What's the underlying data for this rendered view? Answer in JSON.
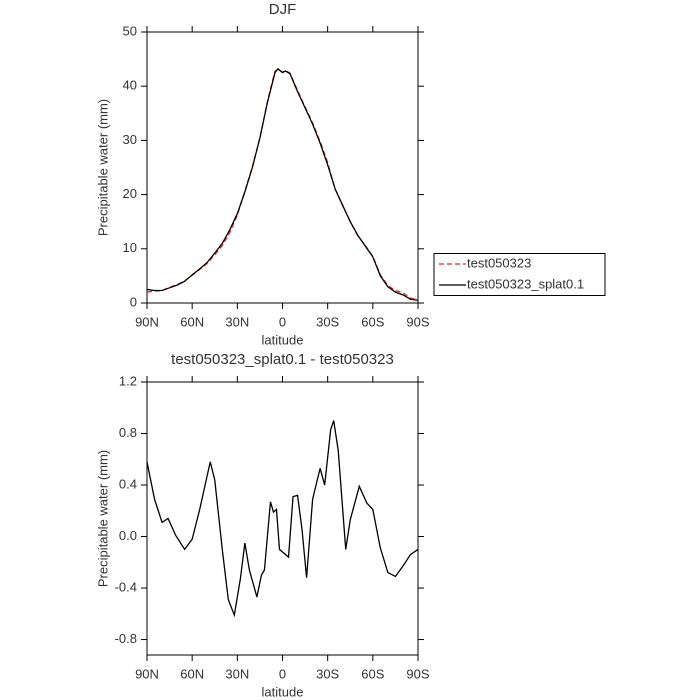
{
  "chart_data": [
    {
      "type": "line",
      "title": "DJF",
      "xlabel": "latitude",
      "ylabel": "Precipitable water (mm)",
      "x": [
        90,
        85,
        80,
        75,
        70,
        65,
        60,
        55,
        50,
        45,
        40,
        35,
        30,
        25,
        20,
        15,
        10,
        5,
        3,
        0,
        -2,
        -5,
        -10,
        -15,
        -20,
        -25,
        -30,
        -35,
        -40,
        -45,
        -50,
        -55,
        -60,
        -65,
        -70,
        -75,
        -80,
        -85,
        -90
      ],
      "series": [
        {
          "name": "test050323",
          "color": "#e8231e",
          "linestyle": "dashed",
          "values": [
            2.0,
            2.2,
            2.3,
            2.9,
            3.4,
            4.1,
            5.1,
            6.2,
            7.3,
            8.9,
            10.6,
            13.0,
            16.2,
            20.6,
            25.2,
            30.4,
            37.2,
            42.8,
            43.0,
            42.6,
            42.9,
            42.4,
            39.2,
            36.2,
            33.2,
            29.8,
            25.9,
            21.0,
            17.9,
            15.0,
            12.4,
            10.6,
            8.6,
            5.2,
            3.2,
            2.3,
            1.9,
            0.9,
            0.6
          ]
        },
        {
          "name": "test050323_splat0.1",
          "color": "#000000",
          "linestyle": "solid",
          "values": [
            2.5,
            2.3,
            2.3,
            2.8,
            3.3,
            4.0,
            5.2,
            6.3,
            7.5,
            9.2,
            11.0,
            13.5,
            16.5,
            20.5,
            25.0,
            30.5,
            37.0,
            42.5,
            43.2,
            42.5,
            42.8,
            42.3,
            39.0,
            36.0,
            33.0,
            29.5,
            25.5,
            21.0,
            18.0,
            15.0,
            12.5,
            10.5,
            8.5,
            5.0,
            3.0,
            2.0,
            1.5,
            0.7,
            0.5
          ]
        }
      ],
      "xlim": [
        90,
        -90
      ],
      "xticks": [
        {
          "value": 90,
          "label": "90N"
        },
        {
          "value": 60,
          "label": "60N"
        },
        {
          "value": 30,
          "label": "30N"
        },
        0,
        {
          "value": -30,
          "label": "30S"
        },
        {
          "value": -60,
          "label": "60S"
        },
        {
          "value": -90,
          "label": "90S"
        }
      ],
      "ylim": [
        0,
        50
      ],
      "yticks": [
        0,
        10,
        20,
        30,
        40,
        50
      ],
      "grid": false,
      "legend": "right"
    },
    {
      "type": "line",
      "title": "test050323_splat0.1 - test050323",
      "xlabel": "latitude",
      "ylabel": "Precipitable water (mm)",
      "x": [
        90,
        85,
        80,
        76,
        71,
        65,
        60,
        55,
        48,
        45,
        40,
        36,
        32,
        28,
        25,
        22,
        17,
        14,
        12,
        8,
        6,
        4,
        2,
        -4,
        -7,
        -10,
        -13,
        -16,
        -20,
        -25,
        -28,
        -32,
        -34,
        -37,
        -42,
        -45,
        -51,
        -56,
        -60,
        -65,
        -70,
        -75,
        -80,
        -85,
        -90
      ],
      "values": [
        0.58,
        0.29,
        0.11,
        0.14,
        0.01,
        -0.1,
        -0.02,
        0.21,
        0.58,
        0.44,
        -0.1,
        -0.49,
        -0.61,
        -0.33,
        -0.05,
        -0.26,
        -0.47,
        -0.3,
        -0.26,
        0.27,
        0.19,
        0.21,
        -0.1,
        -0.16,
        0.31,
        0.32,
        0.05,
        -0.32,
        0.29,
        0.53,
        0.4,
        0.83,
        0.9,
        0.67,
        -0.1,
        0.13,
        0.39,
        0.26,
        0.21,
        -0.09,
        -0.28,
        -0.31,
        -0.23,
        -0.14,
        -0.1
      ],
      "color": "#000000",
      "xlim": [
        90,
        -90
      ],
      "xticks": [
        {
          "value": 90,
          "label": "90N"
        },
        {
          "value": 60,
          "label": "60N"
        },
        {
          "value": 30,
          "label": "30N"
        },
        0,
        {
          "value": -30,
          "label": "30S"
        },
        {
          "value": -60,
          "label": "60S"
        },
        {
          "value": -90,
          "label": "90S"
        }
      ],
      "ylim": [
        -0.92,
        1.2
      ],
      "yticks": [
        1.2,
        0.8,
        0.4,
        {
          "value": 0,
          "label": "0.0"
        },
        -0.4,
        -0.8
      ],
      "grid": false
    }
  ]
}
